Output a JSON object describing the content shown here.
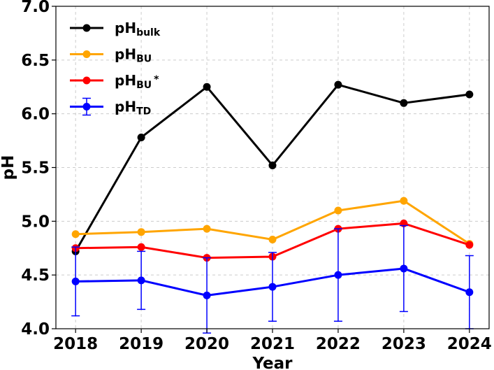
{
  "chart_data": {
    "type": "line",
    "xlabel": "Year",
    "ylabel": "pH",
    "x": [
      2018,
      2019,
      2020,
      2021,
      2022,
      2023,
      2024
    ],
    "xlim": [
      2017.7,
      2024.3
    ],
    "ylim": [
      4.0,
      7.0
    ],
    "yticks": [
      "4.0",
      "4.5",
      "5.0",
      "5.5",
      "6.0",
      "6.5",
      "7.0"
    ],
    "xticks": [
      "2018",
      "2019",
      "2020",
      "2021",
      "2022",
      "2023",
      "2024"
    ],
    "grid": true,
    "legend_position": "upper-left",
    "series": [
      {
        "name": "pH",
        "name_sub": "bulk",
        "name_sup": "",
        "color": "#000000",
        "values": [
          4.72,
          5.78,
          6.25,
          5.52,
          6.27,
          6.1,
          6.18
        ]
      },
      {
        "name": "pH",
        "name_sub": "BU",
        "name_sup": "",
        "color": "#FFA500",
        "values": [
          4.88,
          4.9,
          4.93,
          4.83,
          5.1,
          5.19,
          4.79
        ]
      },
      {
        "name": "pH",
        "name_sub": "BU",
        "name_sup": "*",
        "color": "#FF0000",
        "values": [
          4.75,
          4.76,
          4.66,
          4.67,
          4.93,
          4.98,
          4.78
        ]
      },
      {
        "name": "pH",
        "name_sub": "TD",
        "name_sup": "",
        "color": "#0000FF",
        "values": [
          4.44,
          4.45,
          4.31,
          4.39,
          4.5,
          4.56,
          4.34
        ],
        "error": [
          0.32,
          0.27,
          0.35,
          0.32,
          0.43,
          0.4,
          0.34
        ]
      }
    ]
  }
}
